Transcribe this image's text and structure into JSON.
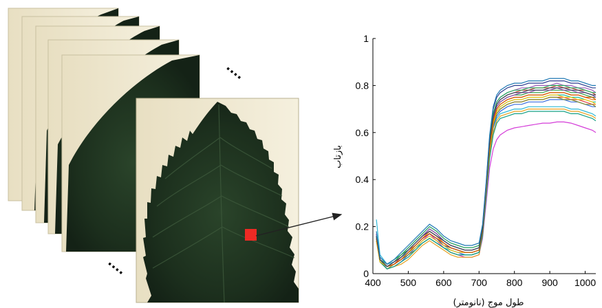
{
  "figure": {
    "ellipsis_mark": "....",
    "selected_pixel_color": "#ee2a24",
    "leaf_color": "#1f3320",
    "paper_color": "#efe8cf",
    "arrow_color": "#222222"
  },
  "chart_data": {
    "type": "line",
    "xlabel": "طول موج (نانومتر)",
    "ylabel": "بازتاب",
    "xlim": [
      400,
      1030
    ],
    "ylim": [
      0,
      1
    ],
    "x_ticks": [
      "400",
      "500",
      "600",
      "700",
      "800",
      "900",
      "1000"
    ],
    "y_ticks": [
      "0",
      "0.2",
      "0.4",
      "0.6",
      "0.8",
      "1"
    ],
    "grid": false,
    "legend": "none",
    "x": [
      410,
      420,
      440,
      460,
      480,
      500,
      520,
      540,
      560,
      580,
      600,
      620,
      640,
      660,
      680,
      700,
      710,
      720,
      730,
      740,
      750,
      760,
      780,
      800,
      820,
      840,
      860,
      880,
      900,
      920,
      940,
      960,
      980,
      1000,
      1020,
      1030
    ],
    "series": [
      {
        "color": "#d43cd8",
        "values": [
          0.14,
          0.05,
          0.02,
          0.03,
          0.05,
          0.08,
          0.11,
          0.14,
          0.17,
          0.14,
          0.11,
          0.09,
          0.08,
          0.07,
          0.07,
          0.08,
          0.15,
          0.3,
          0.45,
          0.53,
          0.57,
          0.59,
          0.61,
          0.62,
          0.625,
          0.63,
          0.635,
          0.64,
          0.64,
          0.645,
          0.645,
          0.64,
          0.63,
          0.62,
          0.61,
          0.6
        ]
      },
      {
        "color": "#2fb8d6",
        "values": [
          0.23,
          0.08,
          0.04,
          0.05,
          0.07,
          0.09,
          0.11,
          0.13,
          0.15,
          0.13,
          0.11,
          0.1,
          0.09,
          0.08,
          0.08,
          0.09,
          0.18,
          0.36,
          0.53,
          0.62,
          0.66,
          0.68,
          0.69,
          0.7,
          0.7,
          0.71,
          0.71,
          0.71,
          0.71,
          0.71,
          0.71,
          0.7,
          0.7,
          0.69,
          0.68,
          0.67
        ]
      },
      {
        "color": "#e04040",
        "values": [
          0.17,
          0.06,
          0.03,
          0.04,
          0.06,
          0.09,
          0.12,
          0.15,
          0.18,
          0.16,
          0.13,
          0.11,
          0.1,
          0.09,
          0.09,
          0.1,
          0.18,
          0.35,
          0.52,
          0.63,
          0.68,
          0.7,
          0.72,
          0.73,
          0.73,
          0.74,
          0.74,
          0.74,
          0.75,
          0.75,
          0.75,
          0.74,
          0.74,
          0.73,
          0.72,
          0.72
        ]
      },
      {
        "color": "#3a6fe0",
        "values": [
          0.16,
          0.06,
          0.02,
          0.03,
          0.05,
          0.08,
          0.11,
          0.14,
          0.16,
          0.14,
          0.12,
          0.1,
          0.09,
          0.08,
          0.08,
          0.09,
          0.17,
          0.34,
          0.51,
          0.62,
          0.67,
          0.69,
          0.71,
          0.72,
          0.72,
          0.73,
          0.73,
          0.73,
          0.74,
          0.74,
          0.74,
          0.73,
          0.73,
          0.72,
          0.71,
          0.71
        ]
      },
      {
        "color": "#2f9e44",
        "values": [
          0.15,
          0.05,
          0.03,
          0.05,
          0.08,
          0.1,
          0.13,
          0.16,
          0.19,
          0.17,
          0.14,
          0.12,
          0.11,
          0.1,
          0.1,
          0.11,
          0.19,
          0.37,
          0.55,
          0.66,
          0.71,
          0.73,
          0.75,
          0.76,
          0.76,
          0.77,
          0.77,
          0.77,
          0.78,
          0.78,
          0.78,
          0.77,
          0.77,
          0.76,
          0.75,
          0.75
        ]
      },
      {
        "color": "#e8a020",
        "values": [
          0.14,
          0.05,
          0.02,
          0.03,
          0.04,
          0.06,
          0.09,
          0.12,
          0.14,
          0.12,
          0.1,
          0.08,
          0.07,
          0.07,
          0.07,
          0.08,
          0.16,
          0.33,
          0.5,
          0.6,
          0.65,
          0.67,
          0.68,
          0.69,
          0.69,
          0.7,
          0.7,
          0.7,
          0.7,
          0.7,
          0.7,
          0.69,
          0.69,
          0.68,
          0.67,
          0.66
        ]
      },
      {
        "color": "#9b59b6",
        "values": [
          0.17,
          0.07,
          0.04,
          0.06,
          0.08,
          0.11,
          0.14,
          0.17,
          0.2,
          0.18,
          0.15,
          0.13,
          0.12,
          0.11,
          0.11,
          0.12,
          0.2,
          0.38,
          0.57,
          0.68,
          0.73,
          0.75,
          0.77,
          0.78,
          0.79,
          0.79,
          0.8,
          0.8,
          0.8,
          0.81,
          0.8,
          0.8,
          0.79,
          0.79,
          0.78,
          0.77
        ]
      },
      {
        "color": "#1abc9c",
        "values": [
          0.15,
          0.06,
          0.03,
          0.04,
          0.06,
          0.09,
          0.12,
          0.15,
          0.17,
          0.15,
          0.13,
          0.11,
          0.1,
          0.09,
          0.09,
          0.1,
          0.18,
          0.35,
          0.53,
          0.64,
          0.69,
          0.71,
          0.73,
          0.74,
          0.74,
          0.75,
          0.75,
          0.75,
          0.76,
          0.76,
          0.76,
          0.75,
          0.75,
          0.74,
          0.73,
          0.73
        ]
      },
      {
        "color": "#c0392b",
        "values": [
          0.16,
          0.06,
          0.03,
          0.04,
          0.07,
          0.1,
          0.13,
          0.16,
          0.18,
          0.16,
          0.14,
          0.12,
          0.11,
          0.1,
          0.1,
          0.11,
          0.19,
          0.37,
          0.56,
          0.67,
          0.72,
          0.74,
          0.76,
          0.77,
          0.78,
          0.78,
          0.79,
          0.79,
          0.79,
          0.8,
          0.79,
          0.79,
          0.78,
          0.78,
          0.77,
          0.76
        ]
      },
      {
        "color": "#7f8c2a",
        "values": [
          0.14,
          0.05,
          0.02,
          0.04,
          0.06,
          0.08,
          0.1,
          0.13,
          0.15,
          0.13,
          0.11,
          0.09,
          0.08,
          0.08,
          0.08,
          0.09,
          0.17,
          0.34,
          0.52,
          0.63,
          0.68,
          0.7,
          0.72,
          0.73,
          0.73,
          0.74,
          0.74,
          0.74,
          0.75,
          0.75,
          0.74,
          0.74,
          0.73,
          0.72,
          0.72,
          0.71
        ]
      },
      {
        "color": "#e67e22",
        "values": [
          0.15,
          0.06,
          0.03,
          0.05,
          0.07,
          0.1,
          0.12,
          0.15,
          0.18,
          0.16,
          0.13,
          0.11,
          0.1,
          0.09,
          0.09,
          0.1,
          0.18,
          0.36,
          0.54,
          0.65,
          0.7,
          0.72,
          0.74,
          0.75,
          0.75,
          0.76,
          0.76,
          0.76,
          0.77,
          0.77,
          0.77,
          0.76,
          0.76,
          0.75,
          0.74,
          0.74
        ]
      },
      {
        "color": "#2c3e90",
        "values": [
          0.16,
          0.06,
          0.03,
          0.04,
          0.06,
          0.09,
          0.12,
          0.15,
          0.17,
          0.15,
          0.12,
          0.11,
          0.1,
          0.09,
          0.09,
          0.1,
          0.19,
          0.38,
          0.58,
          0.7,
          0.75,
          0.77,
          0.79,
          0.8,
          0.8,
          0.81,
          0.81,
          0.81,
          0.82,
          0.82,
          0.82,
          0.81,
          0.81,
          0.8,
          0.79,
          0.79
        ]
      },
      {
        "color": "#16a085",
        "values": [
          0.15,
          0.05,
          0.02,
          0.03,
          0.05,
          0.07,
          0.1,
          0.13,
          0.15,
          0.13,
          0.11,
          0.09,
          0.08,
          0.08,
          0.08,
          0.09,
          0.16,
          0.32,
          0.49,
          0.59,
          0.64,
          0.66,
          0.67,
          0.68,
          0.68,
          0.69,
          0.69,
          0.69,
          0.69,
          0.69,
          0.69,
          0.68,
          0.68,
          0.67,
          0.66,
          0.65
        ]
      },
      {
        "color": "#8e44ad",
        "values": [
          0.17,
          0.06,
          0.03,
          0.05,
          0.07,
          0.1,
          0.13,
          0.16,
          0.19,
          0.17,
          0.14,
          0.12,
          0.11,
          0.1,
          0.1,
          0.11,
          0.19,
          0.37,
          0.55,
          0.66,
          0.71,
          0.73,
          0.75,
          0.76,
          0.77,
          0.77,
          0.78,
          0.78,
          0.78,
          0.79,
          0.78,
          0.78,
          0.77,
          0.77,
          0.76,
          0.75
        ]
      },
      {
        "color": "#f1c40f",
        "values": [
          0.14,
          0.05,
          0.03,
          0.04,
          0.06,
          0.09,
          0.11,
          0.14,
          0.16,
          0.14,
          0.12,
          0.1,
          0.09,
          0.09,
          0.09,
          0.1,
          0.18,
          0.35,
          0.53,
          0.64,
          0.69,
          0.71,
          0.73,
          0.74,
          0.74,
          0.75,
          0.75,
          0.75,
          0.76,
          0.76,
          0.75,
          0.75,
          0.74,
          0.74,
          0.73,
          0.72
        ]
      },
      {
        "color": "#27ae60",
        "values": [
          0.16,
          0.06,
          0.04,
          0.06,
          0.08,
          0.11,
          0.14,
          0.17,
          0.2,
          0.18,
          0.15,
          0.13,
          0.12,
          0.11,
          0.11,
          0.12,
          0.2,
          0.38,
          0.57,
          0.68,
          0.73,
          0.75,
          0.77,
          0.78,
          0.78,
          0.79,
          0.79,
          0.79,
          0.8,
          0.8,
          0.8,
          0.79,
          0.79,
          0.78,
          0.77,
          0.77
        ]
      },
      {
        "color": "#d35400",
        "values": [
          0.15,
          0.06,
          0.03,
          0.04,
          0.06,
          0.09,
          0.12,
          0.15,
          0.17,
          0.15,
          0.13,
          0.11,
          0.1,
          0.09,
          0.09,
          0.1,
          0.18,
          0.36,
          0.54,
          0.65,
          0.7,
          0.72,
          0.74,
          0.75,
          0.75,
          0.76,
          0.76,
          0.76,
          0.77,
          0.77,
          0.77,
          0.76,
          0.76,
          0.75,
          0.75,
          0.74
        ]
      },
      {
        "color": "#34495e",
        "values": [
          0.16,
          0.06,
          0.03,
          0.05,
          0.07,
          0.1,
          0.13,
          0.16,
          0.18,
          0.16,
          0.14,
          0.12,
          0.11,
          0.1,
          0.1,
          0.11,
          0.19,
          0.37,
          0.56,
          0.67,
          0.72,
          0.74,
          0.76,
          0.77,
          0.77,
          0.78,
          0.78,
          0.78,
          0.79,
          0.79,
          0.79,
          0.78,
          0.78,
          0.77,
          0.76,
          0.76
        ]
      },
      {
        "color": "#1f78b4",
        "values": [
          0.18,
          0.07,
          0.04,
          0.06,
          0.09,
          0.12,
          0.15,
          0.18,
          0.21,
          0.19,
          0.16,
          0.14,
          0.13,
          0.12,
          0.12,
          0.13,
          0.21,
          0.39,
          0.59,
          0.71,
          0.76,
          0.78,
          0.8,
          0.81,
          0.81,
          0.82,
          0.82,
          0.82,
          0.83,
          0.83,
          0.83,
          0.82,
          0.82,
          0.81,
          0.8,
          0.8
        ]
      }
    ]
  }
}
